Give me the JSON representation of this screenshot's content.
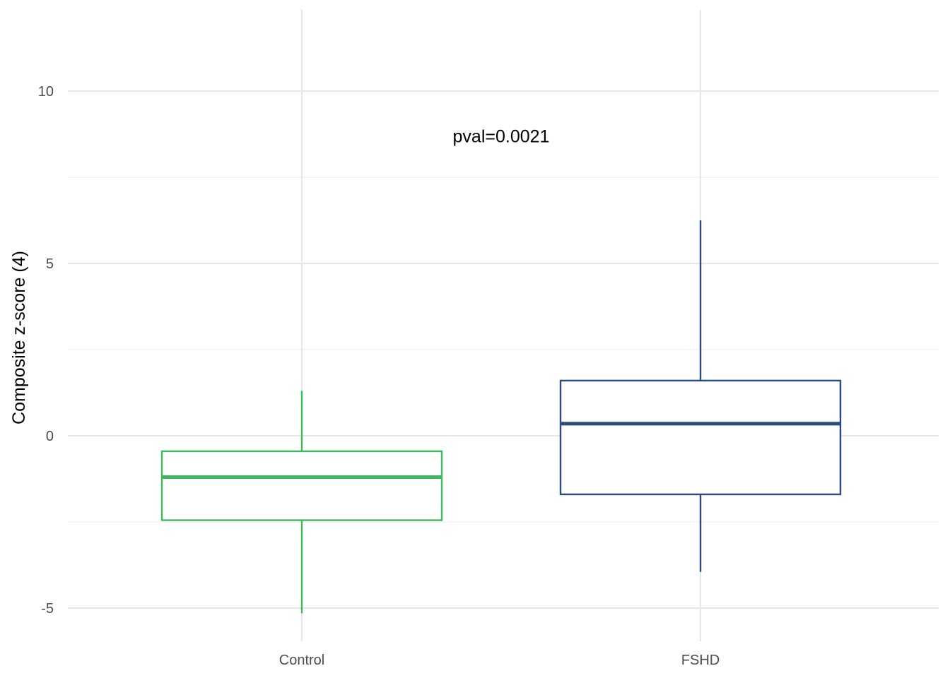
{
  "chart_data": {
    "type": "box",
    "title": "",
    "xlabel": "",
    "ylabel": "Composite z-score (4)",
    "ylim": [
      -5.5,
      12.3
    ],
    "yticks": [
      -5,
      0,
      5,
      10
    ],
    "ytick_labels": [
      "-5",
      "0",
      "5",
      "10"
    ],
    "minor_yticks": [
      -2.5,
      2.5,
      7.5
    ],
    "grid": true,
    "legend": "none",
    "categories": [
      "Control",
      "FSHD"
    ],
    "boxes": [
      {
        "category": "Control",
        "whisker_low": -5.15,
        "q1": -2.45,
        "median": -1.2,
        "q3": -0.45,
        "whisker_high": 1.3,
        "color": "#3dba5f"
      },
      {
        "category": "FSHD",
        "whisker_low": -3.95,
        "q1": -1.7,
        "median": 0.35,
        "q3": 1.6,
        "whisker_high": 6.25,
        "color": "#2c4a7c"
      }
    ],
    "annotations": [
      {
        "text": "pval=0.0021",
        "x": 1.5,
        "y": 8.7
      }
    ]
  }
}
